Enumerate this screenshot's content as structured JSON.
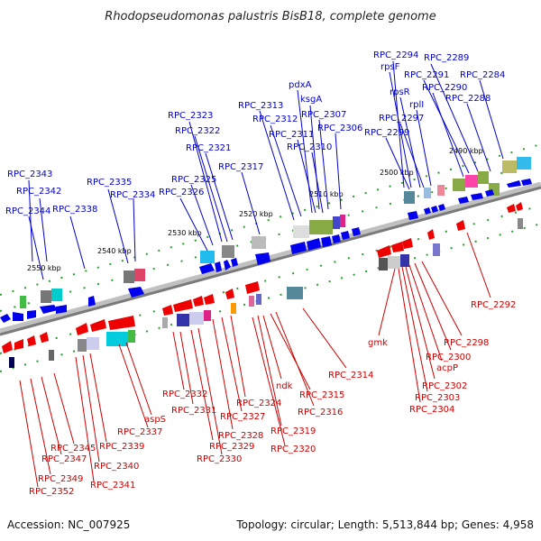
{
  "title": "Rhodopseudomonas palustris BisB18, complete genome",
  "accession": "Accession: NC_007925",
  "summary": "Topology: circular; Length: 5,513,844 bp; Genes: 4,958",
  "colors": {
    "top": "#0000cc",
    "bottom": "#cc0000",
    "backbone": "#808080"
  },
  "kbp_labels": [
    "2550 kbp",
    "2540 kbp",
    "2530 kbp",
    "2520 kbp",
    "2510 kbp",
    "2500 kbp",
    "2490 kbp"
  ],
  "top_labels": [
    "RPC_2343",
    "RPC_2342",
    "RPC_2344",
    "RPC_2338",
    "RPC_2335",
    "RPC_2334",
    "RPC_2326",
    "RPC_2325",
    "RPC_2323",
    "RPC_2322",
    "RPC_2321",
    "RPC_2317",
    "RPC_2313",
    "RPC_2312",
    "RPC_2311",
    "pdxA",
    "ksgA",
    "RPC_2307",
    "RPC_2310",
    "RPC_2306",
    "RPC_2294",
    "rpsF",
    "RPC_2289",
    "RPC_2291",
    "rpsR",
    "RPC_2290",
    "RPC_2284",
    "rplI",
    "RPC_2288",
    "RPC_2297",
    "RPC_2299"
  ],
  "bottom_labels": [
    "RPC_2292",
    "gmk",
    "RPC_2298",
    "RPC_2300",
    "acpP",
    "RPC_2302",
    "RPC_2303",
    "RPC_2304",
    "RPC_2314",
    "ndk",
    "RPC_2315",
    "RPC_2316",
    "RPC_2324",
    "RPC_2327",
    "RPC_2319",
    "RPC_2328",
    "RPC_2320",
    "RPC_2332",
    "RPC_2331",
    "RPC_2329",
    "RPC_2330",
    "aspS",
    "RPC_2337",
    "RPC_2339",
    "RPC_2345",
    "RPC_2347",
    "RPC_2340",
    "RPC_2349",
    "RPC_2341",
    "RPC_2352"
  ]
}
